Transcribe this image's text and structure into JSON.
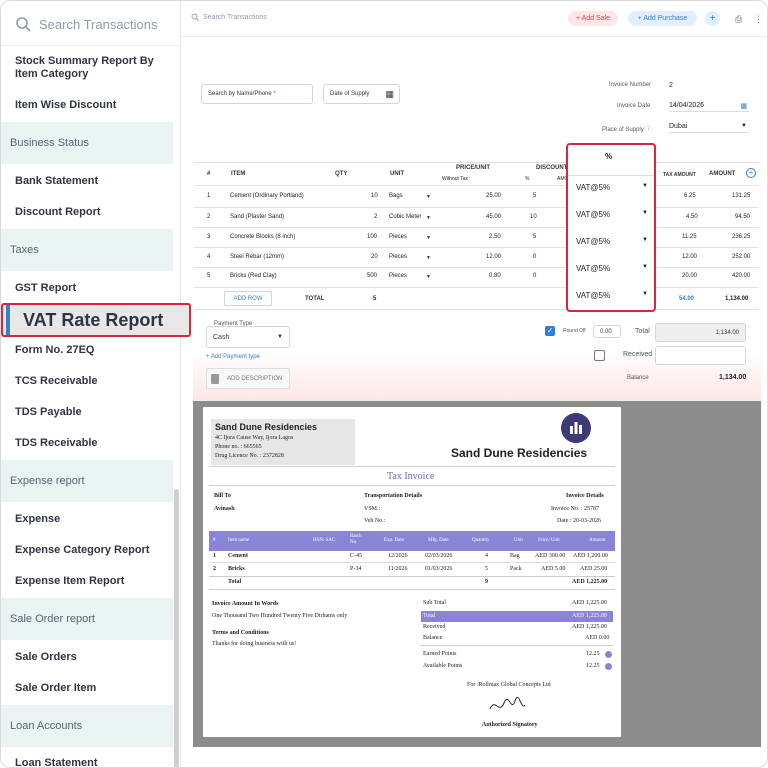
{
  "sidebar": {
    "search_placeholder": "Search Transactions",
    "items": [
      {
        "label": "Stock Summary Report By Item Category"
      },
      {
        "label": "Item Wise Discount"
      },
      {
        "label": "Bank Statement"
      },
      {
        "label": "Discount Report"
      },
      {
        "label": "GST Report"
      },
      {
        "label": "VAT Rate Report"
      },
      {
        "label": "Form No. 27EQ"
      },
      {
        "label": "TCS Receivable"
      },
      {
        "label": "TDS Payable"
      },
      {
        "label": "TDS Receivable"
      },
      {
        "label": "Expense"
      },
      {
        "label": "Expense Category Report"
      },
      {
        "label": "Expense Item Report"
      },
      {
        "label": "Sale Orders"
      },
      {
        "label": "Sale Order Item"
      },
      {
        "label": "Loan Statement"
      }
    ],
    "sections": [
      "Business Status",
      "Taxes",
      "Expense report",
      "Sale Order report",
      "Loan Accounts"
    ]
  },
  "topbar": {
    "search_placeholder": "Search Transactions",
    "add_sale": "+ Add Sale",
    "add_purchase": "+ Add Purchase",
    "plus": "+"
  },
  "form": {
    "search_placeholder": "Search by Name/Phone",
    "required_mark": "*",
    "date_of_supply": "Date of Supply",
    "invoice_number_label": "Invoice Number",
    "invoice_number": "2",
    "invoice_date_label": "Invoice Date",
    "invoice_date": "14/04/2026",
    "place_label": "Place of Supply",
    "place": "Dubai",
    "headers": {
      "num": "#",
      "item": "ITEM",
      "qty": "QTY",
      "unit": "UNIT",
      "price": "PRICE/UNIT",
      "without_tax": "Without Tax",
      "discount": "DISCOUNT",
      "pct": "%",
      "amt": "AMO",
      "tax_pct": "%",
      "tax_amount": "TAX AMOUNT",
      "amount": "AMOUNT"
    },
    "rows": [
      {
        "n": "1",
        "item": "Cement (Ordinary Portland)",
        "qty": "10",
        "unit": "Bags",
        "price": "25.00",
        "disc": "5",
        "vat": "VAT@5%",
        "tax": "6.25",
        "amount": "131.25"
      },
      {
        "n": "2",
        "item": "Sand (Plaster Sand)",
        "qty": "2",
        "unit": "Cubic Meter",
        "price": "45.00",
        "disc": "10",
        "vat": "VAT@5%",
        "tax": "4.50",
        "amount": "94.50"
      },
      {
        "n": "3",
        "item": "Concrete Blocks (8 inch)",
        "qty": "100",
        "unit": "Pieces",
        "price": "2.50",
        "disc": "5",
        "vat": "VAT@5%",
        "tax": "11.25",
        "amount": "236.25"
      },
      {
        "n": "4",
        "item": "Steel Rebar (12mm)",
        "qty": "20",
        "unit": "Pieces",
        "price": "12.00",
        "disc": "0",
        "vat": "VAT@5%",
        "tax": "12.00",
        "amount": "252.00"
      },
      {
        "n": "5",
        "item": "Bricks (Red Clay)",
        "qty": "500",
        "unit": "Pieces",
        "price": "0.80",
        "disc": "0",
        "vat": "VAT@5%",
        "tax": "20.00",
        "amount": "420.00"
      }
    ],
    "add_row": "ADD ROW",
    "total_label": "TOTAL",
    "total_qty": "5",
    "total_tax": "54.00",
    "total_amount": "1,134.00",
    "payment_type_label": "Payment Type",
    "payment_type": "Cash",
    "add_payment_type": "+ Add Payment type",
    "add_description": "ADD DESCRIPTION",
    "round_off_label": "Round Off",
    "round_off": "0.00",
    "total_field_label": "Total",
    "total_field": "1,134.00",
    "received_label": "Received",
    "balance_label": "Balance",
    "balance": "1,134.00"
  },
  "doc": {
    "company": "Sand Dune Residencies",
    "address": "4C Ijora Cause Way, Ijora Lagos",
    "phone": "Phone no. : 665565",
    "licence": "Drug Licence No. : 2372828",
    "brand": "Sand Dune Residencies",
    "title": "Tax Invoice",
    "bill_to": "Bill To",
    "customer": "Avinash",
    "transport": "Transportation Details",
    "vsm": "VSM.:",
    "veh": "Veh No.:",
    "inv_details": "Invoice Details",
    "inv_no": "Invoice No. : 25787",
    "inv_date": "Date : 20-03-2026",
    "cols": [
      "#",
      "Item name",
      "HSN/ SAC",
      "Batch No.",
      "Exp. Date",
      "Mfg. Date",
      "Quantity",
      "Unit",
      "Price/ Unit",
      "Amount"
    ],
    "lines": [
      {
        "n": "1",
        "name": "Cement",
        "batch": "C-45",
        "exp": "12/2026",
        "mfg": "02/03/2026",
        "qty": "4",
        "unit": "Bag",
        "price": "AED 300.00",
        "amount": "AED 1,200.00"
      },
      {
        "n": "2",
        "name": "Bricks",
        "batch": "P-34",
        "exp": "11/2026",
        "mfg": "01/03/2026",
        "qty": "5",
        "unit": "Pack",
        "price": "AED 5.00",
        "amount": "AED 25.00"
      }
    ],
    "total_label": "Total",
    "total_qty": "9",
    "total_amount": "AED 1,225.00",
    "words_label": "Invoice Amount In Words",
    "words": "One Thousand Two Hundred Twenty Five Dirhams only",
    "terms_label": "Terms and Conditions",
    "terms": "Thanks for doing business with us!",
    "summary": [
      {
        "k": "Sub Total",
        "v": "AED 1,225.00"
      },
      {
        "k": "Total",
        "v": "AED 1,225.00"
      },
      {
        "k": "Received",
        "v": "AED 1,225.00"
      },
      {
        "k": "Balance",
        "v": "AED 0.00"
      }
    ],
    "earned_label": "Earned Points",
    "earned": "12.25",
    "available_label": "Available Points",
    "available": "12.25",
    "for_company": "For :Rollmax Global Concepts Ltd",
    "signatory": "Authorized Signatory"
  },
  "colors": {
    "highlight": "#d7263d",
    "accent": "#2f7fd8",
    "doc_header": "#8a84d8",
    "section_bg": "#e9f3f1"
  }
}
